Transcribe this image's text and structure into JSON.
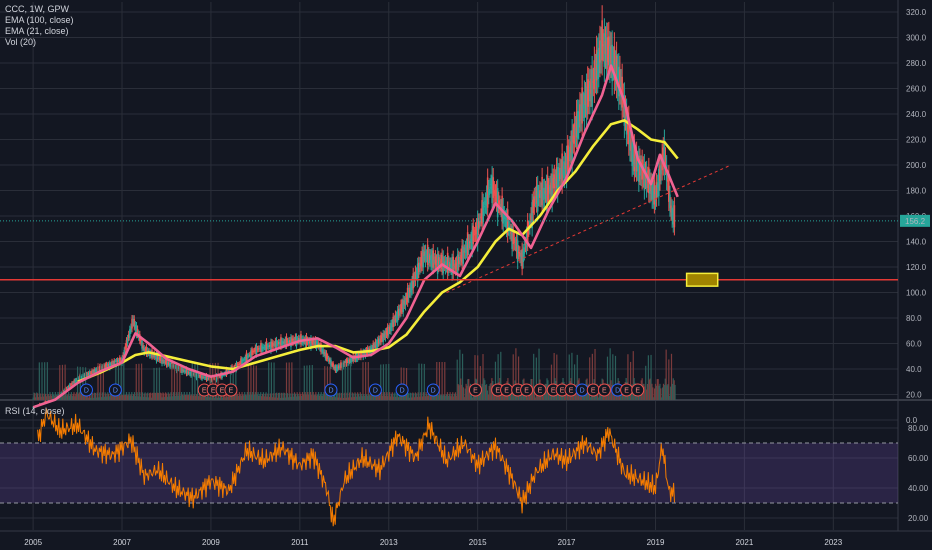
{
  "colors": {
    "background": "#131722",
    "grid": "#2a2e39",
    "candle_up": "#26a69a",
    "candle_down": "#ef5350",
    "ema100": "#f5ee3a",
    "ema21": "#f06292",
    "support_line": "#e53935",
    "trend_line": "#e53935",
    "price_badge": "#26a69a",
    "rsi_line": "#f57c00",
    "rsi_band": "#7e57c2",
    "box_fill": "#a08400",
    "box_stroke": "#f5ee3a",
    "dividend_badge": "#2962ff",
    "earnings_badge": "#ef5350"
  },
  "main_legend": [
    "CCC, 1W, GPW",
    "EMA (100, close)",
    "EMA (21, close)",
    "Vol (20)"
  ],
  "rsi_legend": "RSI (14, close)",
  "last_price_label": "156.2",
  "chart_data": [
    {
      "type": "line",
      "title": "CCC, 1W, GPW",
      "ylim": [
        -8,
        325
      ],
      "yticks": [
        "0.0",
        "20.0",
        "40.0",
        "60.0",
        "80.0",
        "100.0",
        "120.0",
        "140.0",
        "160.0",
        "180.0",
        "200.0",
        "220.0",
        "240.0",
        "260.0",
        "280.0",
        "300.0",
        "320.0"
      ],
      "xticks": [
        "2005",
        "2007",
        "2009",
        "2011",
        "2013",
        "2015",
        "2017",
        "2019",
        "2021",
        "2023"
      ],
      "xlim": [
        2004.3,
        2024.5
      ],
      "series": [
        {
          "name": "CCC, 1W, GPW",
          "x": [
            2005.0,
            2005.5,
            2006.0,
            2006.5,
            2007.0,
            2007.25,
            2007.5,
            2008.0,
            2008.5,
            2009.0,
            2009.25,
            2009.6,
            2010.0,
            2010.5,
            2011.0,
            2011.4,
            2011.8,
            2012.2,
            2012.6,
            2013.0,
            2013.4,
            2013.8,
            2014.0,
            2014.5,
            2015.0,
            2015.3,
            2015.6,
            2016.0,
            2016.3,
            2016.6,
            2017.0,
            2017.3,
            2017.6,
            2017.8,
            2018.0,
            2018.2,
            2018.5,
            2018.8,
            2019.0,
            2019.2,
            2019.35,
            2019.45
          ],
          "values": [
            10,
            17,
            32,
            40,
            47,
            78,
            55,
            45,
            37,
            32,
            35,
            43,
            55,
            60,
            63,
            60,
            40,
            48,
            55,
            70,
            95,
            130,
            125,
            120,
            150,
            185,
            160,
            125,
            175,
            180,
            200,
            240,
            265,
            295,
            285,
            265,
            205,
            190,
            175,
            210,
            165,
            156
          ]
        },
        {
          "name": "EMA (21, close)",
          "x": [
            2005.0,
            2005.5,
            2006.0,
            2006.5,
            2007.0,
            2007.3,
            2007.6,
            2008.0,
            2008.5,
            2009.0,
            2009.5,
            2010.0,
            2010.5,
            2011.0,
            2011.4,
            2011.8,
            2012.2,
            2012.6,
            2013.0,
            2013.4,
            2013.8,
            2014.2,
            2014.6,
            2015.0,
            2015.4,
            2015.8,
            2016.2,
            2016.6,
            2017.0,
            2017.4,
            2017.8,
            2018.0,
            2018.3,
            2018.6,
            2018.9,
            2019.1,
            2019.3,
            2019.5
          ],
          "values": [
            10,
            16,
            29,
            38,
            45,
            68,
            60,
            48,
            40,
            34,
            38,
            50,
            56,
            62,
            64,
            57,
            49,
            51,
            60,
            80,
            110,
            122,
            113,
            140,
            170,
            155,
            135,
            165,
            190,
            225,
            255,
            278,
            250,
            205,
            185,
            208,
            192,
            175
          ]
        },
        {
          "name": "EMA (100, close)",
          "x": [
            2006.0,
            2006.5,
            2007.0,
            2007.3,
            2007.6,
            2008.0,
            2008.5,
            2009.0,
            2009.5,
            2010.0,
            2010.5,
            2011.0,
            2011.4,
            2011.8,
            2012.2,
            2012.6,
            2013.0,
            2013.4,
            2013.8,
            2014.2,
            2014.6,
            2015.0,
            2015.4,
            2015.7,
            2016.0,
            2016.4,
            2016.8,
            2017.2,
            2017.6,
            2018.0,
            2018.3,
            2018.6,
            2018.9,
            2019.2,
            2019.5
          ],
          "values": [
            30,
            37,
            45,
            51,
            53,
            50,
            46,
            42,
            40,
            45,
            50,
            55,
            58,
            58,
            53,
            54,
            57,
            67,
            85,
            100,
            108,
            120,
            140,
            150,
            145,
            160,
            180,
            195,
            215,
            232,
            235,
            228,
            220,
            218,
            205
          ]
        }
      ],
      "horizontal_line": {
        "value": 110
      },
      "trend_line": {
        "from": [
          2014.3,
          100
        ],
        "to": [
          2020.7,
          200
        ]
      },
      "box": {
        "from": [
          2019.7,
          105
        ],
        "to": [
          2020.4,
          115
        ]
      },
      "events": [
        {
          "x": 2006.2,
          "label": "D"
        },
        {
          "x": 2006.85,
          "label": "D"
        },
        {
          "x": 2008.85,
          "label": "E"
        },
        {
          "x": 2009.05,
          "label": "E"
        },
        {
          "x": 2009.25,
          "label": "E"
        },
        {
          "x": 2009.45,
          "label": "E"
        },
        {
          "x": 2011.7,
          "label": "D"
        },
        {
          "x": 2012.7,
          "label": "D"
        },
        {
          "x": 2013.3,
          "label": "D"
        },
        {
          "x": 2014.0,
          "label": "D"
        },
        {
          "x": 2014.95,
          "label": "E"
        },
        {
          "x": 2015.45,
          "label": "E"
        },
        {
          "x": 2015.65,
          "label": "E"
        },
        {
          "x": 2015.9,
          "label": "E"
        },
        {
          "x": 2016.1,
          "label": "E"
        },
        {
          "x": 2016.4,
          "label": "E"
        },
        {
          "x": 2016.7,
          "label": "E"
        },
        {
          "x": 2016.9,
          "label": "E"
        },
        {
          "x": 2017.1,
          "label": "E"
        },
        {
          "x": 2017.35,
          "label": "D"
        },
        {
          "x": 2017.6,
          "label": "E"
        },
        {
          "x": 2017.85,
          "label": "E"
        },
        {
          "x": 2018.15,
          "label": "D"
        },
        {
          "x": 2018.35,
          "label": "E"
        },
        {
          "x": 2018.6,
          "label": "E"
        }
      ]
    },
    {
      "type": "line",
      "title": "RSI (14, close)",
      "ylim": [
        15,
        95
      ],
      "yticks": [
        "20.00",
        "40.00",
        "60.00",
        "80.00"
      ],
      "band": [
        30,
        70
      ],
      "series": [
        {
          "name": "RSI (14, close)",
          "x": [
            2005.1,
            2005.3,
            2005.6,
            2006.0,
            2006.4,
            2006.8,
            2007.2,
            2007.5,
            2007.8,
            2008.2,
            2008.6,
            2009.0,
            2009.4,
            2009.8,
            2010.2,
            2010.6,
            2011.0,
            2011.3,
            2011.6,
            2011.75,
            2012.0,
            2012.4,
            2012.8,
            2013.2,
            2013.6,
            2013.9,
            2014.3,
            2014.7,
            2015.0,
            2015.4,
            2015.8,
            2016.0,
            2016.3,
            2016.7,
            2017.0,
            2017.4,
            2017.7,
            2017.95,
            2018.3,
            2018.7,
            2019.0,
            2019.15,
            2019.3,
            2019.45
          ],
          "values": [
            72,
            90,
            78,
            82,
            65,
            62,
            72,
            48,
            52,
            40,
            33,
            45,
            38,
            65,
            58,
            67,
            55,
            62,
            40,
            17,
            45,
            60,
            52,
            75,
            60,
            82,
            58,
            70,
            55,
            68,
            45,
            30,
            50,
            63,
            58,
            70,
            62,
            78,
            50,
            45,
            40,
            68,
            38,
            36
          ]
        }
      ]
    }
  ]
}
